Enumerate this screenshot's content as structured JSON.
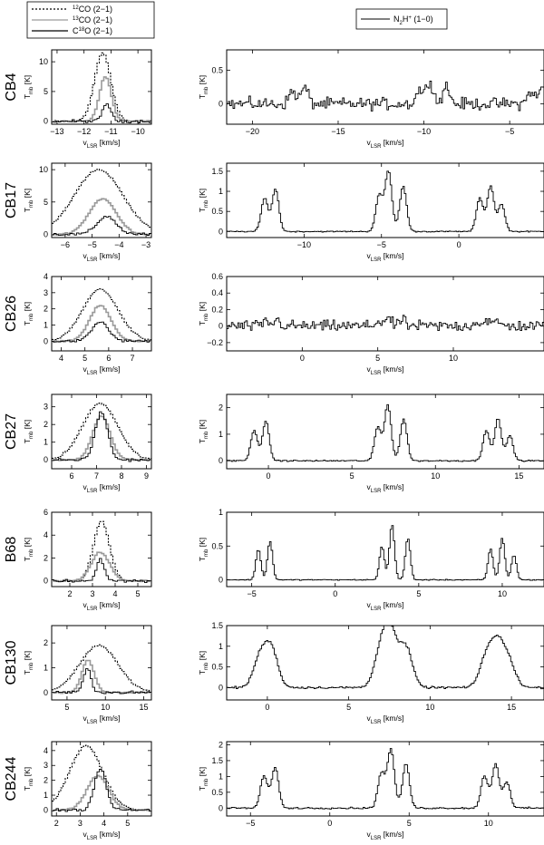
{
  "chart_data": {
    "type": "line",
    "legend_left": [
      {
        "label": "12CO (2-1)",
        "sup": "12",
        "rest": "CO (2−1)",
        "style": "dotted",
        "color": "#000000"
      },
      {
        "label": "13CO (2-1)",
        "sup": "13",
        "rest": "CO (2−1)",
        "style": "solid",
        "color": "#9a9a9a"
      },
      {
        "label": "C18O (2-1)",
        "pre": "C",
        "sup": "18",
        "rest": "O (2−1)",
        "style": "solid",
        "color": "#000000"
      }
    ],
    "legend_right": {
      "label": "N2H+ (1-0)",
      "pre": "N",
      "sub": "2",
      "mid": "H",
      "sup": "+",
      "rest": " (1−0)"
    },
    "xlabel_main": "v",
    "xlabel_sub": "LSR",
    "xlabel_units": " [km/s]",
    "ylabel_main": "T",
    "ylabel_sub": "mb",
    "ylabel_units": " [K]",
    "sources": [
      {
        "name": "CB4",
        "co": {
          "xlim": [
            -13.2,
            -9.5
          ],
          "ylim": [
            -0.5,
            12
          ],
          "xticks": [
            -13,
            -12,
            -11,
            -10
          ],
          "yticks": [
            0,
            5,
            10
          ],
          "c12": {
            "center": -11.35,
            "width": 0.3,
            "amp": 11.5
          },
          "c13": {
            "center": -11.25,
            "width": 0.22,
            "amp": 7.5
          },
          "c18": {
            "center": -11.2,
            "width": 0.15,
            "amp": 3.0
          }
        },
        "n2h": {
          "xlim": [
            -21.5,
            -3
          ],
          "ylim": [
            -0.3,
            0.8
          ],
          "xticks": [
            -20,
            -15,
            -10,
            -5
          ],
          "yticks": [
            0,
            0.5
          ],
          "ref": -9.7,
          "amp": 0.35,
          "noise": 0.13,
          "width": 0.2
        }
      },
      {
        "name": "CB17",
        "co": {
          "xlim": [
            -6.5,
            -2.8
          ],
          "ylim": [
            -0.5,
            11
          ],
          "xticks": [
            -6,
            -5,
            -4,
            -3
          ],
          "yticks": [
            0,
            5,
            10
          ],
          "c12": {
            "center": -4.8,
            "width": 0.9,
            "amp": 10
          },
          "c13": {
            "center": -4.65,
            "width": 0.5,
            "amp": 5.5
          },
          "c18": {
            "center": -4.5,
            "width": 0.35,
            "amp": 2.8
          }
        },
        "n2h": {
          "xlim": [
            -15,
            5.5
          ],
          "ylim": [
            -0.15,
            1.7
          ],
          "xticks": [
            -10,
            -5,
            0
          ],
          "yticks": [
            0,
            0.5,
            1,
            1.5
          ],
          "ref": -4.6,
          "amp": 1.5,
          "noise": 0.02,
          "width": 0.22
        }
      },
      {
        "name": "CB26",
        "co": {
          "xlim": [
            3.6,
            7.8
          ],
          "ylim": [
            -0.6,
            4
          ],
          "xticks": [
            4,
            5,
            6,
            7
          ],
          "yticks": [
            0,
            1,
            2,
            3,
            4
          ],
          "c12": {
            "center": 5.6,
            "width": 0.75,
            "amp": 3.2
          },
          "c13": {
            "center": 5.6,
            "width": 0.45,
            "amp": 2.2
          },
          "c18": {
            "center": 5.6,
            "width": 0.35,
            "amp": 1.2
          }
        },
        "n2h": {
          "xlim": [
            -5,
            16
          ],
          "ylim": [
            -0.3,
            0.6
          ],
          "xticks": [
            0,
            5,
            10
          ],
          "yticks": [
            -0.2,
            0,
            0.2,
            0.4,
            0.6
          ],
          "ref": 5.6,
          "amp": 0.1,
          "noise": 0.1,
          "width": 0.2
        }
      },
      {
        "name": "CB27",
        "co": {
          "xlim": [
            5.2,
            9.2
          ],
          "ylim": [
            -0.5,
            3.7
          ],
          "xticks": [
            6,
            7,
            8,
            9
          ],
          "yticks": [
            0,
            1,
            2,
            3
          ],
          "c12": {
            "center": 7.1,
            "width": 0.7,
            "amp": 3.2
          },
          "c13": {
            "center": 7.15,
            "width": 0.35,
            "amp": 2.5
          },
          "c18": {
            "center": 7.15,
            "width": 0.25,
            "amp": 2.7
          }
        },
        "n2h": {
          "xlim": [
            -2.5,
            16.5
          ],
          "ylim": [
            -0.3,
            2.5
          ],
          "xticks": [
            0,
            5,
            10,
            15
          ],
          "yticks": [
            0,
            1,
            2
          ],
          "ref": 7.1,
          "amp": 2.1,
          "noise": 0.04,
          "width": 0.2
        }
      },
      {
        "name": "B68",
        "co": {
          "xlim": [
            1.2,
            5.6
          ],
          "ylim": [
            -0.5,
            6
          ],
          "xticks": [
            2,
            3,
            4,
            5
          ],
          "yticks": [
            0,
            2,
            4,
            6
          ],
          "c12": {
            "center": 3.35,
            "width": 0.35,
            "amp": 5.2
          },
          "c13": {
            "center": 3.3,
            "width": 0.4,
            "amp": 2.5
          },
          "c18": {
            "center": 3.3,
            "width": 0.18,
            "amp": 1.9
          }
        },
        "n2h": {
          "xlim": [
            -6.5,
            12.5
          ],
          "ylim": [
            -0.1,
            1.0
          ],
          "xticks": [
            -5,
            0,
            5,
            10
          ],
          "yticks": [
            0,
            0.5,
            1
          ],
          "ref": 3.35,
          "amp": 0.82,
          "noise": 0.01,
          "width": 0.15
        }
      },
      {
        "name": "CB130",
        "co": {
          "xlim": [
            3,
            16
          ],
          "ylim": [
            -0.3,
            2.7
          ],
          "xticks": [
            5,
            10,
            15
          ],
          "yticks": [
            0,
            1,
            2
          ],
          "c12": {
            "center": 9,
            "width": 2.5,
            "amp": 1.9
          },
          "c13": {
            "center": 7.6,
            "width": 0.8,
            "amp": 1.3
          },
          "c18": {
            "center": 7.5,
            "width": 0.5,
            "amp": 1.0
          }
        },
        "n2h": {
          "xlim": [
            -2.5,
            17
          ],
          "ylim": [
            -0.3,
            1.5
          ],
          "xticks": [
            0,
            5,
            10,
            15
          ],
          "yticks": [
            0,
            0.5,
            1,
            1.5
          ],
          "ref": 7.5,
          "amp": 1.3,
          "noise": 0.04,
          "width": 0.4
        }
      },
      {
        "name": "CB244",
        "co": {
          "xlim": [
            1.8,
            6
          ],
          "ylim": [
            -0.4,
            4.6
          ],
          "xticks": [
            2,
            3,
            4,
            5
          ],
          "yticks": [
            0,
            1,
            2,
            3,
            4
          ],
          "c12": {
            "center": 3.2,
            "width": 0.7,
            "amp": 4.3
          },
          "c13": {
            "center": 3.7,
            "width": 0.45,
            "amp": 2.3
          },
          "c18": {
            "center": 3.8,
            "width": 0.25,
            "amp": 2.8
          }
        },
        "n2h": {
          "xlim": [
            -6.5,
            13.5
          ],
          "ylim": [
            -0.25,
            2.1
          ],
          "xticks": [
            -5,
            0,
            5,
            10
          ],
          "yticks": [
            0,
            0.5,
            1,
            1.5,
            2
          ],
          "ref": 3.8,
          "amp": 1.85,
          "noise": 0.04,
          "width": 0.22
        }
      }
    ],
    "hfs_offsets_kms": [
      -8.0,
      -7.3,
      -0.6,
      0,
      0.95,
      5.9,
      6.6,
      7.3
    ],
    "hfs_relative_strengths": [
      0.55,
      0.7,
      0.6,
      1.0,
      0.75,
      0.55,
      0.75,
      0.45
    ]
  }
}
